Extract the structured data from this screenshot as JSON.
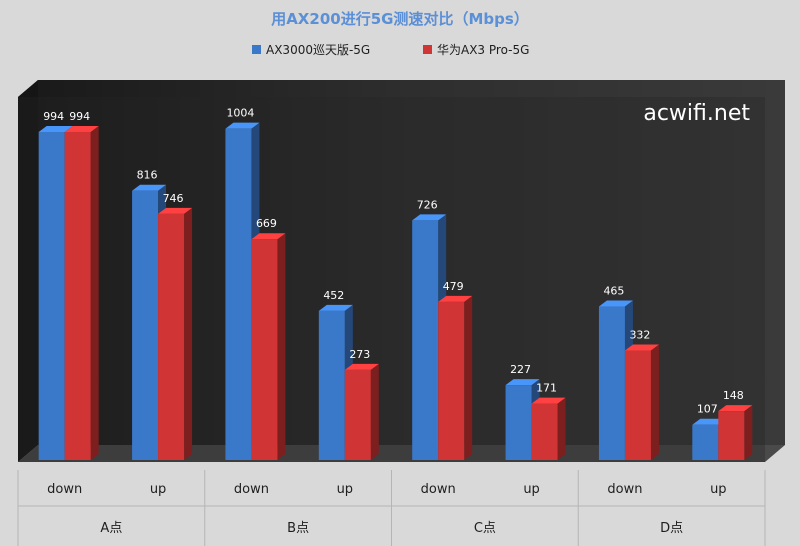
{
  "chart_data": {
    "type": "bar",
    "title": "用AX200进行5G测速对比（Mbps）",
    "watermark": "acwifi.net",
    "series": [
      {
        "name": "AX3000巡天版-5G",
        "color": "#3a78c9",
        "values": [
          994,
          816,
          1004,
          452,
          726,
          227,
          465,
          107
        ]
      },
      {
        "name": "华为AX3 Pro-5G",
        "color": "#d03434",
        "values": [
          994,
          746,
          669,
          273,
          479,
          171,
          332,
          148
        ]
      }
    ],
    "categories": [
      "down",
      "up",
      "down",
      "up",
      "down",
      "up",
      "down",
      "up"
    ],
    "groups": [
      "A点",
      "B点",
      "C点",
      "D点"
    ],
    "ylim": [
      0,
      1100
    ],
    "grid": false,
    "legend_position": "top"
  }
}
